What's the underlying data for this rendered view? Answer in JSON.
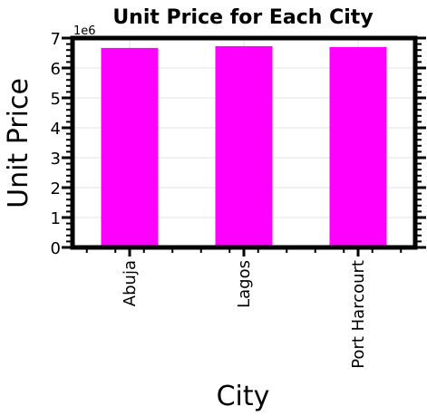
{
  "chart_data": {
    "type": "bar",
    "title": "Unit Price for Each City",
    "xlabel": "City",
    "ylabel": "Unit Price",
    "y_offset_label": "1e6",
    "categories": [
      "Abuja",
      "Lagos",
      "Port Harcourt"
    ],
    "values": [
      6.67,
      6.73,
      6.7
    ],
    "value_multiplier": 1000000,
    "ylim": [
      0,
      7
    ],
    "yticks": [
      "0",
      "1",
      "2",
      "3",
      "4",
      "5",
      "6",
      "7"
    ],
    "grid": true,
    "bar_color": "#ff00ff"
  }
}
